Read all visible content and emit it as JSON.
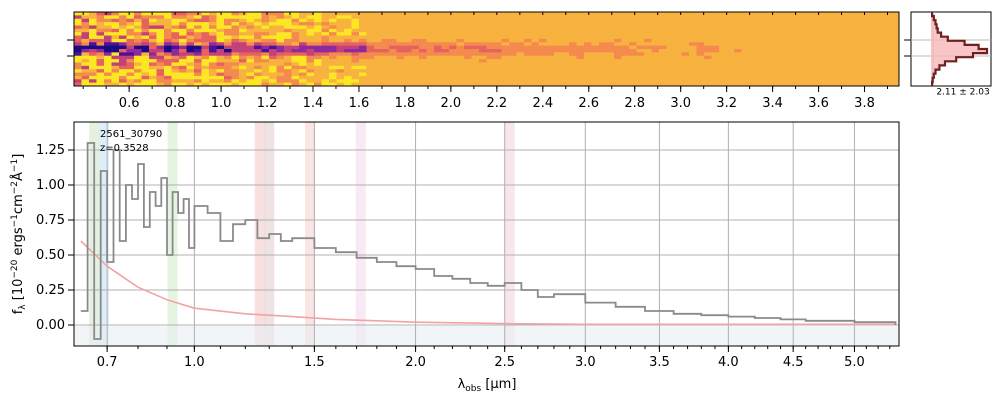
{
  "chart_data": [
    {
      "type": "heatmap",
      "panel": "2d-spectrum",
      "colormap": "plasma (inverted)",
      "xlim_um": [
        0.36,
        3.95
      ],
      "x_tick_labels": [
        "0.6",
        "0.8",
        "1.0",
        "1.2",
        "1.4",
        "1.6",
        "1.8",
        "2.0",
        "2.2",
        "2.4",
        "2.6",
        "2.8",
        "3.0",
        "3.2",
        "3.4",
        "3.6",
        "3.8"
      ],
      "x_ticks": [
        0.6,
        0.8,
        1.0,
        1.2,
        1.4,
        1.6,
        1.8,
        2.0,
        2.2,
        2.4,
        2.6,
        2.8,
        3.0,
        3.2,
        3.4,
        3.6,
        3.8
      ],
      "grid": false
    },
    {
      "type": "line",
      "panel": "spatial-profile",
      "annotation": "2.11 ± 2.03",
      "profile": [
        0.02,
        0.05,
        0.08,
        0.1,
        0.12,
        0.18,
        0.3,
        0.6,
        0.85,
        1.0,
        0.75,
        0.45,
        0.25,
        0.15,
        0.08,
        0.05,
        0.03,
        0.02
      ],
      "grid": true
    },
    {
      "type": "line",
      "panel": "1d-spectrum",
      "title": "",
      "xlabel": "λ_obs [μm]",
      "ylabel": "f_λ [10^-20 ergs^-1 cm^-2 Å^-1]",
      "xscale": "sqrt",
      "xlim": [
        0.6,
        5.38
      ],
      "ylim": [
        -0.15,
        1.45
      ],
      "x_ticks": [
        0.7,
        1.0,
        1.5,
        2.0,
        2.5,
        3.0,
        3.5,
        4.0,
        4.5,
        5.0
      ],
      "x_tick_labels": [
        "0.7",
        "1.0",
        "1.5",
        "2.0",
        "2.5",
        "3.0",
        "3.5",
        "4.0",
        "4.5",
        "5.0"
      ],
      "y_ticks": [
        0.0,
        0.25,
        0.5,
        0.75,
        1.0,
        1.25
      ],
      "y_tick_labels": [
        "0.00",
        "0.25",
        "0.50",
        "0.75",
        "1.00",
        "1.25"
      ],
      "grid": true,
      "annotations": [
        "2561_30790",
        "z=0.3528"
      ],
      "series": [
        {
          "role": "flux",
          "color": "#8a8a8a",
          "x": [
            0.62,
            0.64,
            0.66,
            0.68,
            0.7,
            0.72,
            0.74,
            0.76,
            0.78,
            0.8,
            0.82,
            0.84,
            0.86,
            0.88,
            0.9,
            0.92,
            0.94,
            0.96,
            0.98,
            1.0,
            1.05,
            1.1,
            1.15,
            1.2,
            1.25,
            1.3,
            1.35,
            1.4,
            1.5,
            1.6,
            1.7,
            1.8,
            1.9,
            2.0,
            2.1,
            2.2,
            2.3,
            2.4,
            2.5,
            2.6,
            2.7,
            2.8,
            3.0,
            3.2,
            3.4,
            3.6,
            3.8,
            4.0,
            4.2,
            4.4,
            4.6,
            4.8,
            5.0,
            5.2,
            5.35
          ],
          "y": [
            0.1,
            1.3,
            -0.1,
            1.1,
            0.45,
            1.25,
            0.6,
            1.0,
            0.9,
            1.15,
            0.7,
            0.95,
            0.85,
            1.05,
            0.5,
            0.95,
            0.8,
            0.9,
            0.55,
            0.85,
            0.8,
            0.6,
            0.72,
            0.75,
            0.62,
            0.65,
            0.6,
            0.62,
            0.55,
            0.52,
            0.48,
            0.45,
            0.42,
            0.4,
            0.35,
            0.33,
            0.3,
            0.28,
            0.3,
            0.25,
            0.2,
            0.22,
            0.16,
            0.13,
            0.1,
            0.08,
            0.07,
            0.06,
            0.05,
            0.04,
            0.03,
            0.03,
            0.02,
            0.02,
            0.0
          ]
        },
        {
          "role": "model",
          "color": "#f2a3a3",
          "x": [
            0.62,
            0.7,
            0.8,
            0.9,
            1.0,
            1.2,
            1.4,
            1.6,
            1.8,
            2.0,
            2.5,
            3.0,
            3.5,
            4.0,
            4.5,
            5.0,
            5.35
          ],
          "y": [
            0.6,
            0.42,
            0.27,
            0.18,
            0.12,
            0.08,
            0.06,
            0.04,
            0.03,
            0.02,
            0.01,
            0.005,
            0.005,
            0.005,
            0.005,
            0.005,
            0.005
          ]
        }
      ],
      "line_bands_um": [
        {
          "x": 0.66,
          "color": "#d9ead3"
        },
        {
          "x": 0.69,
          "color": "#d0e7f5"
        },
        {
          "x": 0.92,
          "color": "#d9f0d3"
        },
        {
          "x": 1.26,
          "color": "#f5d3d3"
        },
        {
          "x": 1.3,
          "color": "#e8d6d6"
        },
        {
          "x": 1.48,
          "color": "#f8d9d9"
        },
        {
          "x": 1.72,
          "color": "#f6e0f0"
        },
        {
          "x": 2.53,
          "color": "#f7dbe6"
        }
      ]
    }
  ]
}
